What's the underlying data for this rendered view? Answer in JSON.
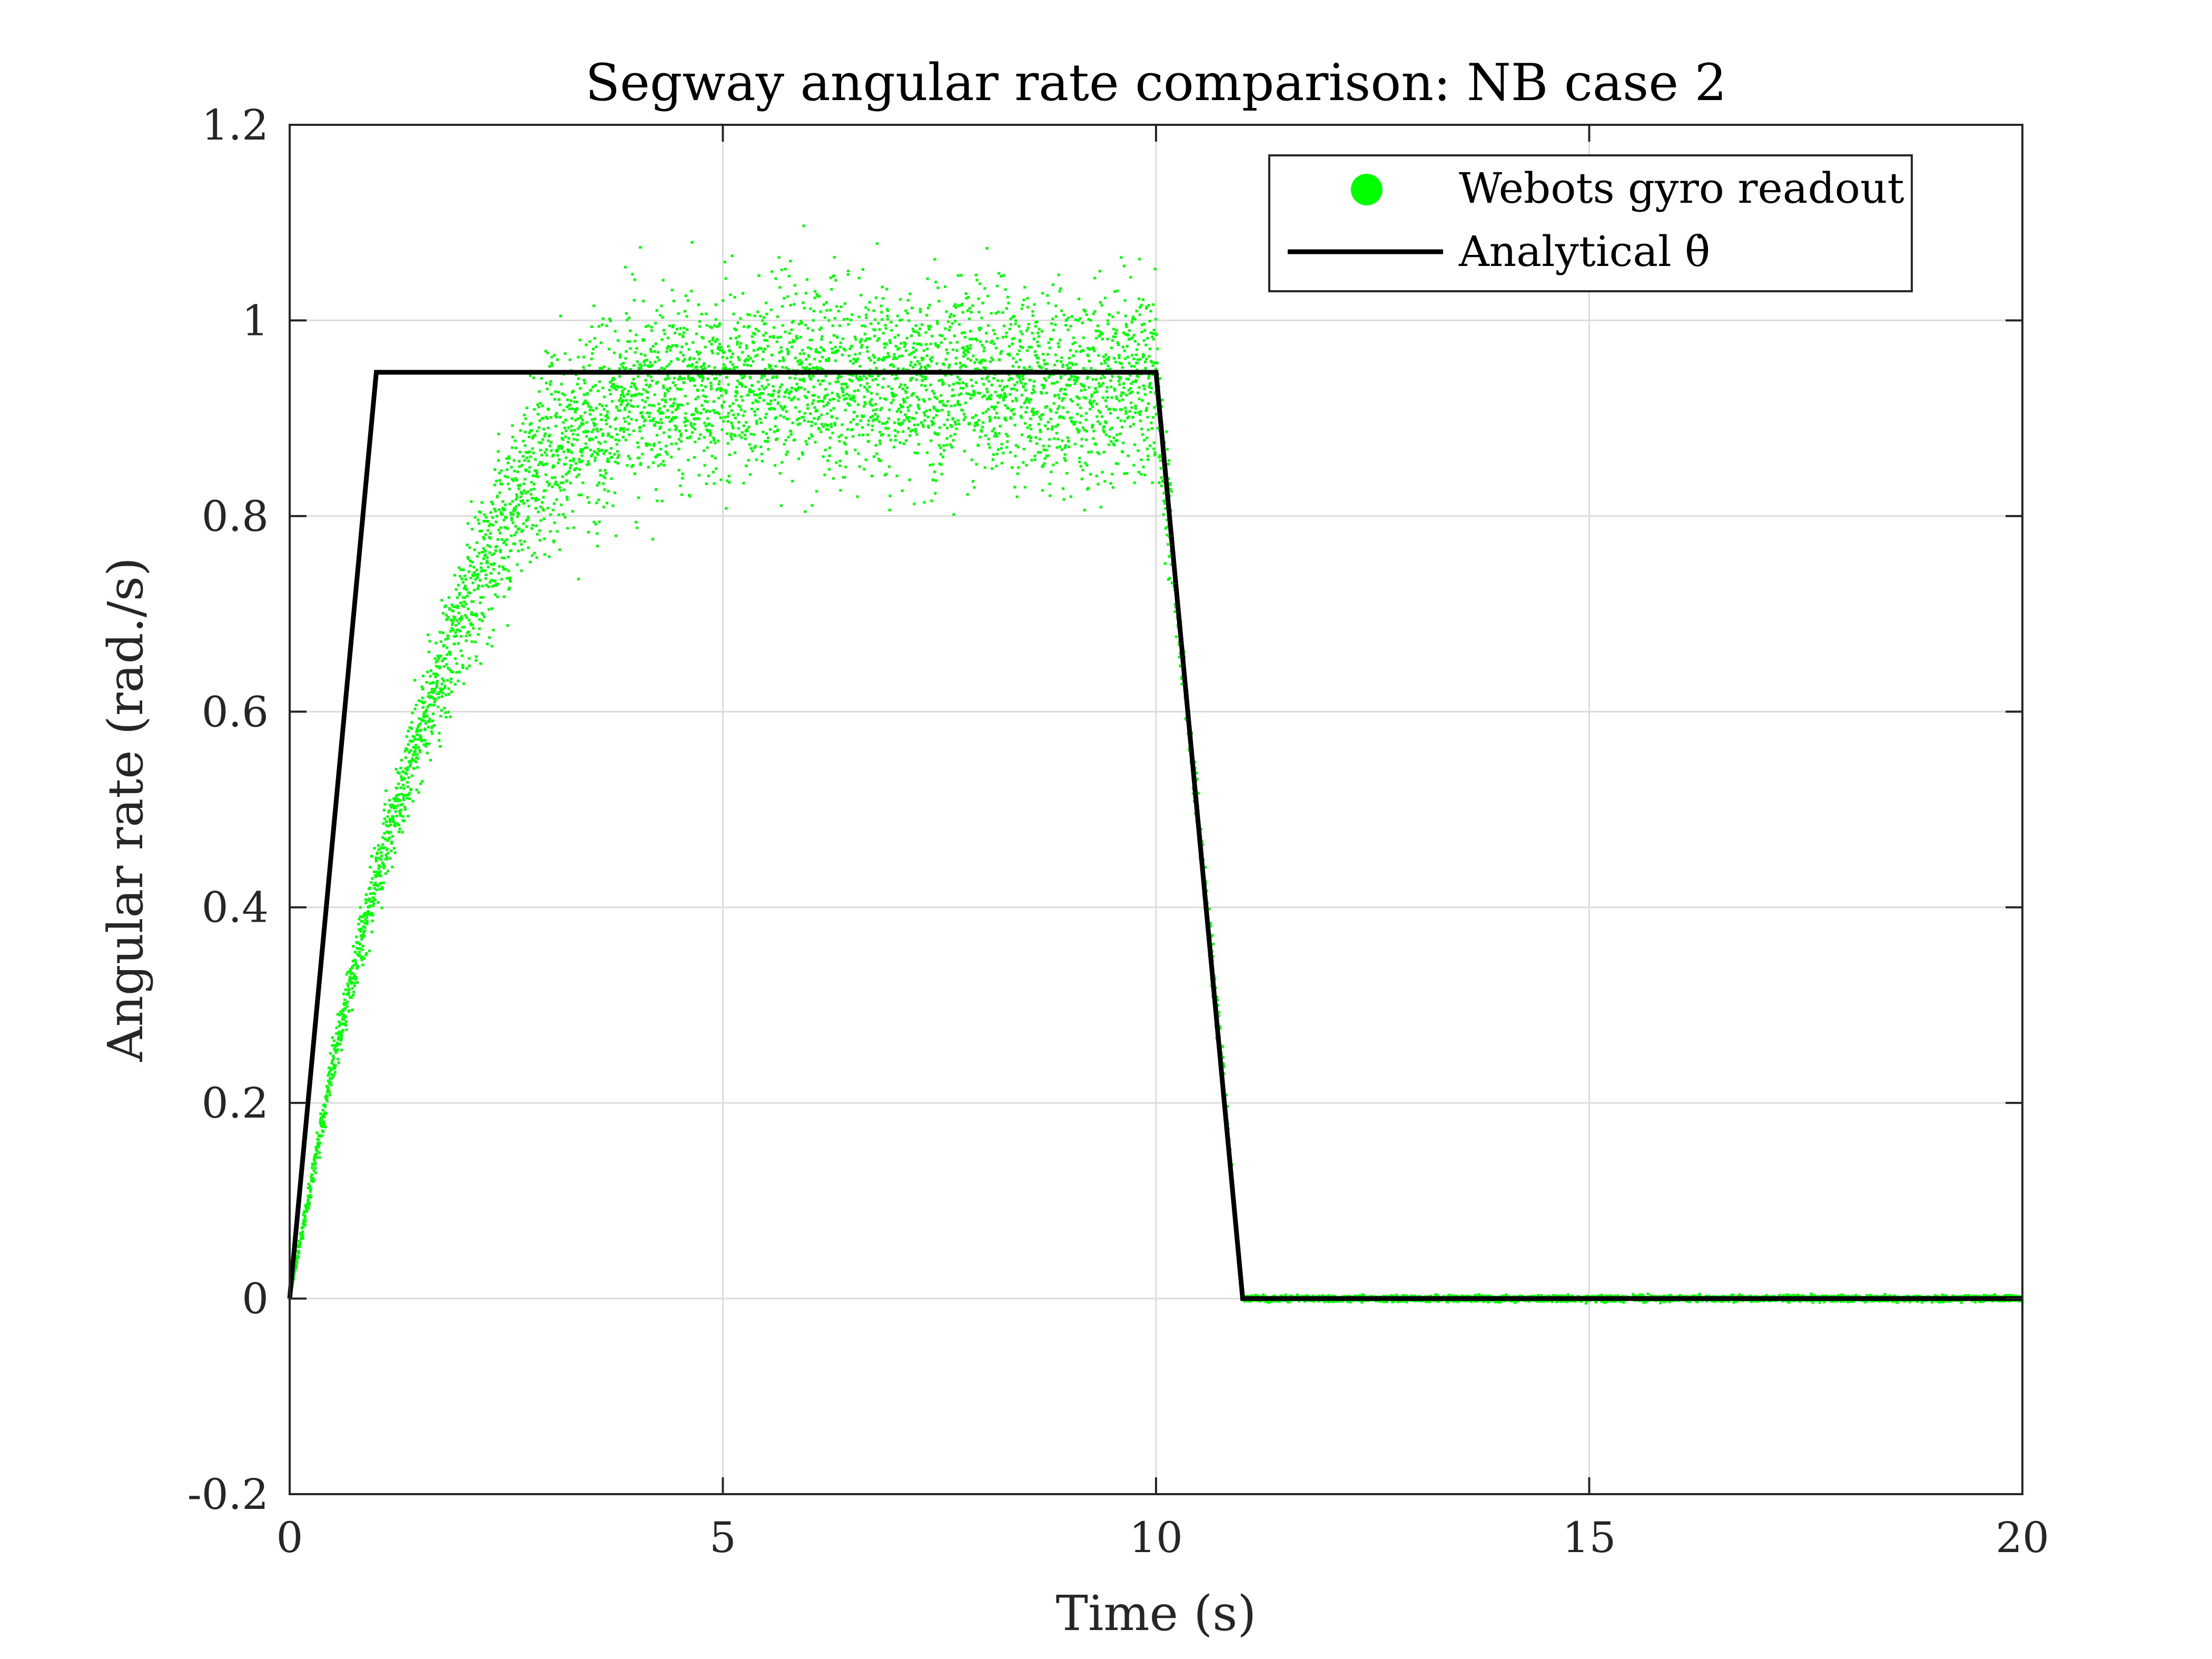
{
  "chart_data": {
    "type": "scatter",
    "title": "Segway angular rate comparison: NB case 2",
    "xlabel": "Time (s)",
    "ylabel": "Angular rate (rad./s)",
    "xlim": [
      0,
      20
    ],
    "ylim": [
      -0.2,
      1.2
    ],
    "xticks": [
      0,
      5,
      10,
      15,
      20
    ],
    "xtick_labels": [
      "0",
      "5",
      "10",
      "15",
      "20"
    ],
    "yticks": [
      -0.2,
      0,
      0.2,
      0.4,
      0.6,
      0.8,
      1.0,
      1.2
    ],
    "ytick_labels": [
      "-0.2",
      "0",
      "0.2",
      "0.4",
      "0.6",
      "0.8",
      "1",
      "1.2"
    ],
    "grid": true,
    "legend_position": "top-right",
    "colors": {
      "gyro": "#00ff00",
      "analytical": "#000000"
    },
    "series": [
      {
        "name": "Webots gyro readout",
        "kind": "scatter",
        "x": [
          0.0,
          0.25,
          0.5,
          0.75,
          1.0,
          1.25,
          1.5,
          1.75,
          2.0,
          2.25,
          2.5,
          2.75,
          3.0,
          3.5,
          4.0,
          4.5,
          5.0,
          5.5,
          6.0,
          6.5,
          7.0,
          7.5,
          8.0,
          8.5,
          9.0,
          9.5,
          10.0,
          10.25,
          10.5,
          10.75,
          11.0,
          11.5,
          12.0,
          13.0,
          14.0,
          15.0,
          16.0,
          17.0,
          18.0,
          19.0,
          20.0
        ],
        "y": [
          0.0,
          0.12,
          0.24,
          0.34,
          0.43,
          0.51,
          0.58,
          0.64,
          0.7,
          0.75,
          0.8,
          0.84,
          0.87,
          0.9,
          0.92,
          0.93,
          0.935,
          0.94,
          0.94,
          0.94,
          0.94,
          0.94,
          0.94,
          0.935,
          0.93,
          0.935,
          0.94,
          0.7,
          0.48,
          0.25,
          0.0,
          0.0,
          0.0,
          0.0,
          0.0,
          0.0,
          0.0,
          0.0,
          0.0,
          0.0,
          0.0
        ],
        "noise_band": [
          0.0,
          0.01,
          0.015,
          0.02,
          0.025,
          0.03,
          0.035,
          0.04,
          0.045,
          0.05,
          0.055,
          0.06,
          0.065,
          0.065,
          0.065,
          0.065,
          0.065,
          0.065,
          0.065,
          0.065,
          0.065,
          0.065,
          0.065,
          0.065,
          0.065,
          0.065,
          0.06,
          0.02,
          0.02,
          0.02,
          0.002,
          0.002,
          0.002,
          0.002,
          0.002,
          0.002,
          0.002,
          0.002,
          0.002,
          0.002,
          0.002
        ]
      },
      {
        "name": "Analytical θ̇",
        "kind": "line",
        "x": [
          0,
          1,
          10,
          11,
          20
        ],
        "y": [
          0,
          0.947,
          0.947,
          0,
          0
        ]
      }
    ]
  }
}
